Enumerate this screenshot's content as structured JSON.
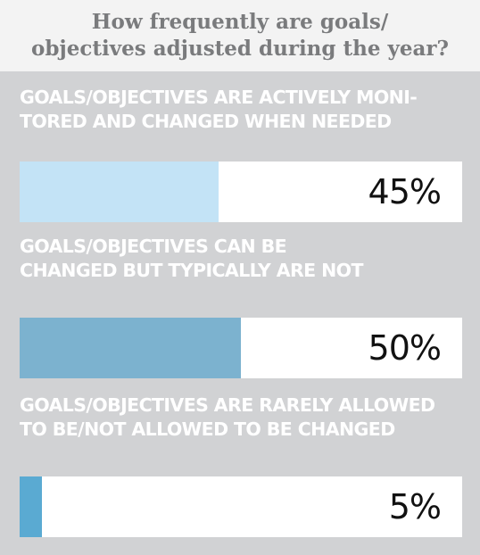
{
  "chart_data": {
    "type": "bar",
    "orientation": "horizontal",
    "title": "How frequently are goals/ objectives adjusted during the year?",
    "title_lines": [
      "How frequently are goals/",
      "objectives adjusted during the year?"
    ],
    "categories": [
      "GOALS/OBJECTIVES ARE ACTIVELY MONI-TORED AND CHANGED WHEN NEEDED",
      "GOALS/OBJECTIVES CAN BE CHANGED BUT TYPICALLY ARE NOT",
      "GOALS/OBJECTIVES ARE RARELY ALLOWED TO BE/NOT ALLOWED TO BE CHANGED"
    ],
    "category_lines": [
      [
        "GOALS/OBJECTIVES ARE ACTIVELY MONI-",
        "TORED AND CHANGED WHEN NEEDED"
      ],
      [
        "GOALS/OBJECTIVES CAN BE",
        "CHANGED BUT TYPICALLY ARE NOT"
      ],
      [
        "GOALS/OBJECTIVES ARE RARELY ALLOWED",
        "TO BE/NOT ALLOWED TO BE CHANGED"
      ]
    ],
    "values": [
      45,
      50,
      5
    ],
    "value_labels": [
      "45%",
      "50%",
      "5%"
    ],
    "unit": "%",
    "xlim": [
      0,
      100
    ],
    "colors": [
      "#c3e3f6",
      "#7cb2cf",
      "#5aaad2"
    ],
    "track_color": "#ffffff",
    "background": "#d1d2d4",
    "header_background": "#f3f3f3",
    "title_color": "#7a7b7d",
    "label_color": "#ffffff",
    "grid": false,
    "legend": "none"
  }
}
